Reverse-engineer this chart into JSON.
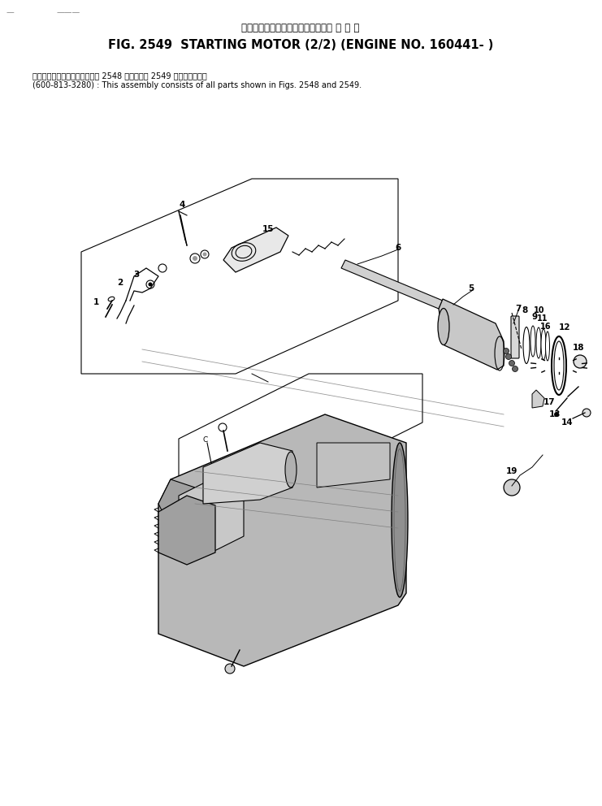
{
  "title_jp": "スターティング　モータ　　　　適 用 号 機",
  "title_en": "FIG. 2549  STARTING MOTOR (2/2) (ENGINE NO. 160441- )",
  "note_jp": "このアセンブリの構成部品は第 2548 図および第 2549 図を含みます．",
  "note_en": "(600-813-3280) : This assembly consists of all parts shown in Figs. 2548 and 2549.",
  "bg_color": "#ffffff",
  "text_color": "#000000",
  "line_color": "#000000",
  "part_numbers": [
    1,
    2,
    3,
    4,
    5,
    6,
    7,
    8,
    9,
    10,
    11,
    12,
    13,
    14,
    15,
    16,
    17,
    18,
    19
  ]
}
